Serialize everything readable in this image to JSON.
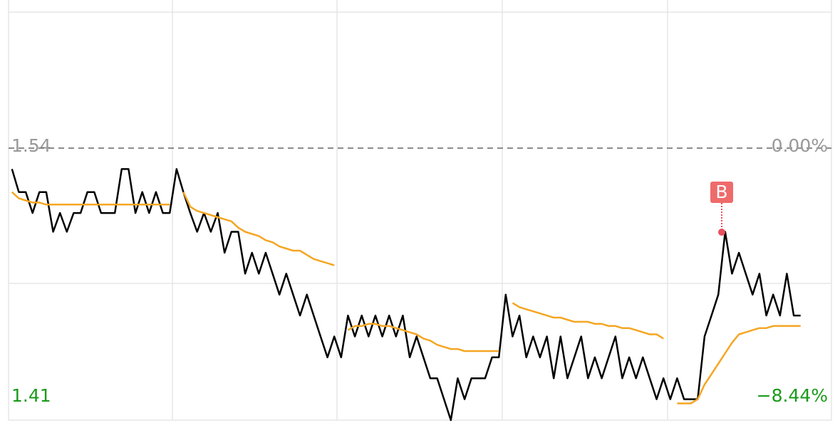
{
  "chart_data": {
    "type": "line",
    "ylim": [
      1.41,
      1.605
    ],
    "yticks": [
      1.54,
      1.41
    ],
    "y2lim": [
      -8.44,
      4.22
    ],
    "y2ticks": [
      {
        "value": 0,
        "label": "0.00%"
      },
      {
        "value": -8.44,
        "label": "−8.44%"
      }
    ],
    "tick_colors": [
      "#999999",
      "#1a9a1a"
    ],
    "annotation": "B",
    "series": [
      {
        "color": "#000000",
        "values": [
          1.53,
          1.519,
          1.519,
          1.509,
          1.519,
          1.519,
          1.5,
          1.509,
          1.5,
          1.509,
          1.509,
          1.519,
          1.519,
          1.509,
          1.509,
          1.509,
          1.53,
          1.53,
          1.509,
          1.519,
          1.509,
          1.519,
          1.509,
          1.509,
          1.53,
          1.519,
          1.509,
          1.5,
          1.509,
          1.5,
          1.509,
          1.49,
          1.5,
          1.5,
          1.48,
          1.49,
          1.48,
          1.49,
          1.48,
          1.47,
          1.48,
          1.47,
          1.46,
          1.47,
          1.46,
          1.45,
          1.44,
          1.45,
          1.44,
          1.46,
          1.45,
          1.46,
          1.45,
          1.46,
          1.45,
          1.46,
          1.45,
          1.46,
          1.44,
          1.45,
          1.44,
          1.43,
          1.43,
          1.42,
          1.41,
          1.43,
          1.42,
          1.43,
          1.43,
          1.43,
          1.44,
          1.44,
          1.47,
          1.45,
          1.46,
          1.44,
          1.45,
          1.44,
          1.45,
          1.43,
          1.45,
          1.43,
          1.44,
          1.45,
          1.43,
          1.44,
          1.43,
          1.44,
          1.45,
          1.43,
          1.44,
          1.43,
          1.44,
          1.43,
          1.42,
          1.43,
          1.42,
          1.43,
          1.42,
          1.42,
          1.42,
          1.45,
          1.46,
          1.47,
          1.5,
          1.48,
          1.49,
          1.48,
          1.47,
          1.48,
          1.46,
          1.47,
          1.46,
          1.48,
          1.46,
          1.46
        ]
      },
      {
        "color": "#f5a623",
        "values": [
          1.519,
          1.516,
          1.515,
          1.514,
          1.514,
          1.513,
          1.513,
          1.513,
          1.513,
          1.513,
          1.513,
          1.513,
          1.513,
          1.513,
          1.513,
          1.513,
          1.513,
          1.513,
          1.513,
          1.513,
          1.513,
          1.513,
          1.513,
          1.513,
          null,
          1.519,
          1.512,
          1.51,
          1.509,
          1.508,
          1.507,
          1.506,
          1.505,
          1.502,
          1.5,
          1.499,
          1.498,
          1.496,
          1.495,
          1.493,
          1.492,
          1.491,
          1.491,
          1.489,
          1.487,
          1.486,
          1.485,
          1.484,
          null,
          1.453,
          1.455,
          1.455,
          1.456,
          1.456,
          1.455,
          1.455,
          1.454,
          1.453,
          1.452,
          1.451,
          1.449,
          1.448,
          1.446,
          1.445,
          1.444,
          1.444,
          1.443,
          1.443,
          1.443,
          1.443,
          1.443,
          1.443,
          null,
          1.466,
          1.464,
          1.463,
          1.462,
          1.461,
          1.46,
          1.459,
          1.459,
          1.458,
          1.457,
          1.457,
          1.457,
          1.456,
          1.456,
          1.455,
          1.455,
          1.454,
          1.454,
          1.453,
          1.452,
          1.451,
          1.451,
          1.449,
          null,
          1.418,
          1.418,
          1.418,
          1.42,
          1.427,
          1.432,
          1.437,
          1.442,
          1.447,
          1.451,
          1.452,
          1.453,
          1.454,
          1.454,
          1.455,
          1.455,
          1.455,
          1.455,
          1.455
        ]
      }
    ]
  }
}
